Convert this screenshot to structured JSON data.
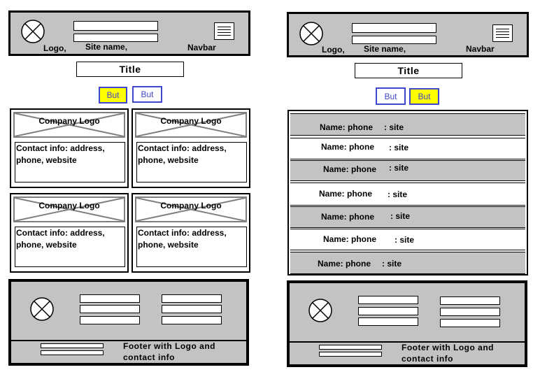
{
  "header": {
    "logo_label": "Logo,",
    "site_name_label": "Site name,",
    "navbar_label": "Navbar"
  },
  "title": "Title",
  "left_buttons": [
    "But",
    "But"
  ],
  "right_buttons": [
    "But",
    "But"
  ],
  "cards": [
    {
      "logo": "Company Logo",
      "info_line1": "Contact info: address,",
      "info_line2": "phone, website"
    },
    {
      "logo": "Company Logo",
      "info_line1": "Contact info: address,",
      "info_line2": "phone, website"
    },
    {
      "logo": "Company Logo",
      "info_line1": "Contact info: address,",
      "info_line2": "phone, website"
    },
    {
      "logo": "Company Logo",
      "info_line1": "Contact info: address,",
      "info_line2": "phone, website"
    }
  ],
  "list_rows": [
    {
      "name": "Name: phone",
      "site": ": site"
    },
    {
      "name": "Name: phone",
      "site": ": site"
    },
    {
      "name": "Name: phone",
      "site": ": site"
    },
    {
      "name": "Name: phone",
      "site": ": site"
    },
    {
      "name": "Name: phone",
      "site": ": site"
    },
    {
      "name": "Name: phone",
      "site": ": site"
    },
    {
      "name": "Name: phone",
      "site": ": site"
    }
  ],
  "footer": {
    "text_line1": "Footer with Logo and",
    "text_line2": "contact info"
  },
  "colors": {
    "panel_gray": "#c3c3c3",
    "button_border": "#3f48cc",
    "button_highlight": "#ffff00",
    "placeholder_border": "#7f7f7f"
  }
}
